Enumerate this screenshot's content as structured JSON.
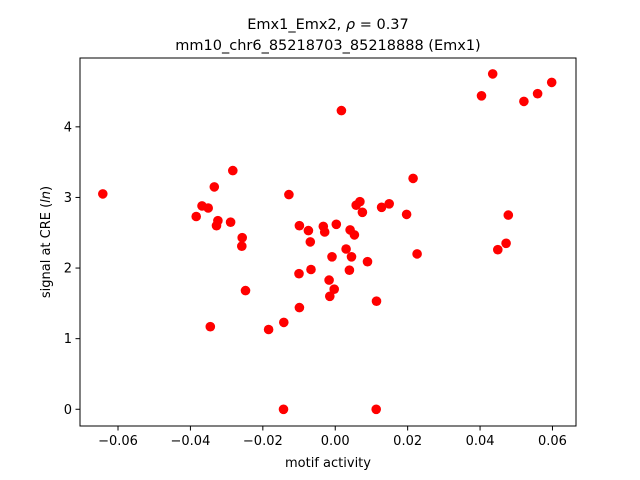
{
  "chart_data": {
    "type": "scatter",
    "title_line1_prefix": "Emx1_Emx2, ",
    "title_line1_rho": "ρ",
    "title_line1_suffix": " = 0.37",
    "title_line2": "mm10_chr6_85218703_85218888 (Emx1)",
    "xlabel": "motif activity",
    "ylabel_prefix": "signal at CRE (",
    "ylabel_italic": "ln",
    "ylabel_suffix": ")",
    "xlim": [
      -0.0705,
      0.0665
    ],
    "ylim": [
      -0.237,
      4.975
    ],
    "xticks": [
      -0.06,
      -0.04,
      -0.02,
      0.0,
      0.02,
      0.04,
      0.06
    ],
    "xtick_labels": [
      "−0.06",
      "−0.04",
      "−0.02",
      "0.00",
      "0.02",
      "0.04",
      "0.06"
    ],
    "yticks": [
      0,
      1,
      2,
      3,
      4
    ],
    "ytick_labels": [
      "0",
      "1",
      "2",
      "3",
      "4"
    ],
    "grid": false,
    "legend": "none",
    "marker_color": "#ff0000",
    "points": [
      {
        "x": -0.0642,
        "y": 3.05
      },
      {
        "x": -0.0384,
        "y": 2.73
      },
      {
        "x": -0.0368,
        "y": 2.88
      },
      {
        "x": -0.0351,
        "y": 2.85
      },
      {
        "x": -0.0334,
        "y": 3.15
      },
      {
        "x": -0.0328,
        "y": 2.6
      },
      {
        "x": -0.0324,
        "y": 2.67
      },
      {
        "x": -0.0289,
        "y": 2.65
      },
      {
        "x": -0.0283,
        "y": 3.38
      },
      {
        "x": -0.0257,
        "y": 2.43
      },
      {
        "x": -0.0258,
        "y": 2.31
      },
      {
        "x": -0.0248,
        "y": 1.68
      },
      {
        "x": -0.0345,
        "y": 1.17
      },
      {
        "x": -0.0184,
        "y": 1.13
      },
      {
        "x": -0.0142,
        "y": 1.23
      },
      {
        "x": -0.0143,
        "y": 0.0
      },
      {
        "x": -0.0128,
        "y": 3.04
      },
      {
        "x": -0.0099,
        "y": 2.6
      },
      {
        "x": -0.01,
        "y": 1.92
      },
      {
        "x": -0.0099,
        "y": 1.44
      },
      {
        "x": -0.0074,
        "y": 2.53
      },
      {
        "x": -0.0069,
        "y": 2.37
      },
      {
        "x": -0.0067,
        "y": 1.98
      },
      {
        "x": -0.0033,
        "y": 2.59
      },
      {
        "x": -0.0029,
        "y": 2.51
      },
      {
        "x": -0.0017,
        "y": 1.83
      },
      {
        "x": -0.0015,
        "y": 1.6
      },
      {
        "x": -0.0009,
        "y": 2.16
      },
      {
        "x": -0.0003,
        "y": 1.7
      },
      {
        "x": 0.0003,
        "y": 2.62
      },
      {
        "x": 0.0017,
        "y": 4.23
      },
      {
        "x": 0.003,
        "y": 2.27
      },
      {
        "x": 0.0039,
        "y": 1.97
      },
      {
        "x": 0.0041,
        "y": 2.54
      },
      {
        "x": 0.0045,
        "y": 2.16
      },
      {
        "x": 0.0053,
        "y": 2.47
      },
      {
        "x": 0.0058,
        "y": 2.89
      },
      {
        "x": 0.0068,
        "y": 2.94
      },
      {
        "x": 0.0075,
        "y": 2.79
      },
      {
        "x": 0.0089,
        "y": 2.09
      },
      {
        "x": 0.0114,
        "y": 1.53
      },
      {
        "x": 0.0113,
        "y": 0.0
      },
      {
        "x": 0.0128,
        "y": 2.86
      },
      {
        "x": 0.0149,
        "y": 2.91
      },
      {
        "x": 0.0197,
        "y": 2.76
      },
      {
        "x": 0.0215,
        "y": 3.27
      },
      {
        "x": 0.0226,
        "y": 2.2
      },
      {
        "x": 0.0404,
        "y": 4.44
      },
      {
        "x": 0.0435,
        "y": 4.75
      },
      {
        "x": 0.0449,
        "y": 2.26
      },
      {
        "x": 0.0472,
        "y": 2.35
      },
      {
        "x": 0.0478,
        "y": 2.75
      },
      {
        "x": 0.0521,
        "y": 4.36
      },
      {
        "x": 0.0559,
        "y": 4.47
      },
      {
        "x": 0.0598,
        "y": 4.63
      }
    ]
  }
}
